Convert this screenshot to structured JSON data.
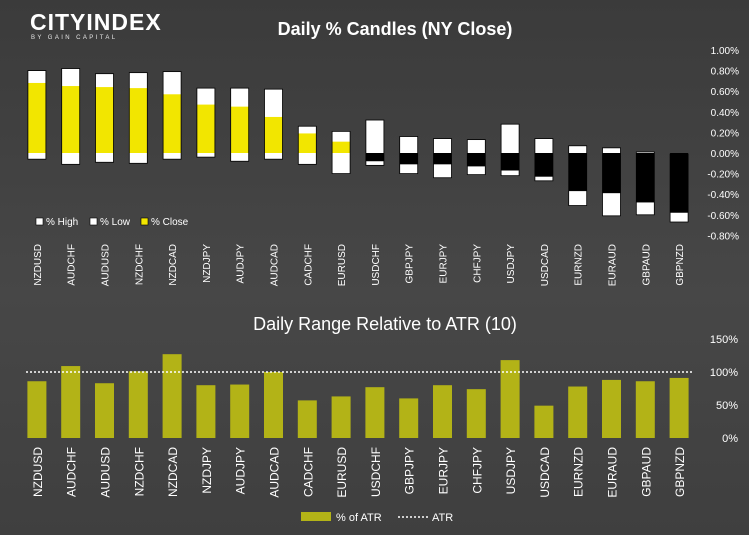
{
  "brand": {
    "name_a": "CITY",
    "name_b": "INDEX",
    "tagline": "BY GAIN CAPITAL"
  },
  "colors": {
    "yellow": "#f2e600",
    "olive": "#b3b317",
    "white": "#ffffff",
    "black": "#000000"
  },
  "chart_data": [
    {
      "type": "bar",
      "title": "Daily % Candles (NY Close)",
      "categories": [
        "NZDUSD",
        "AUDCHF",
        "AUDUSD",
        "NZDCHF",
        "NZDCAD",
        "NZDJPY",
        "AUDJPY",
        "AUDCAD",
        "CADCHF",
        "EURUSD",
        "USDCHF",
        "GBPJPY",
        "EURJPY",
        "CHFJPY",
        "USDJPY",
        "USDCAD",
        "EURNZD",
        "EURAUD",
        "GBPAUD",
        "GBPNZD"
      ],
      "series": [
        {
          "name": "% High",
          "values": [
            0.8,
            0.82,
            0.77,
            0.78,
            0.79,
            0.63,
            0.63,
            0.62,
            0.26,
            0.21,
            0.32,
            0.16,
            0.14,
            0.13,
            0.28,
            0.14,
            0.07,
            0.05,
            0.01,
            -0.01
          ]
        },
        {
          "name": "% Low",
          "values": [
            -0.06,
            -0.11,
            -0.09,
            -0.1,
            -0.06,
            -0.04,
            -0.08,
            -0.06,
            -0.11,
            -0.2,
            -0.12,
            -0.2,
            -0.24,
            -0.21,
            -0.22,
            -0.27,
            -0.51,
            -0.61,
            -0.6,
            -0.67
          ]
        },
        {
          "name": "% Close",
          "values": [
            0.68,
            0.65,
            0.64,
            0.63,
            0.57,
            0.47,
            0.45,
            0.35,
            0.19,
            0.11,
            -0.08,
            -0.11,
            -0.11,
            -0.13,
            -0.17,
            -0.23,
            -0.37,
            -0.39,
            -0.48,
            -0.58
          ]
        }
      ],
      "yticks": [
        "1.00%",
        "0.80%",
        "0.60%",
        "0.40%",
        "0.20%",
        "0.00%",
        "-0.20%",
        "-0.40%",
        "-0.60%",
        "-0.80%"
      ],
      "ylim": [
        -0.8,
        1.0
      ],
      "legend_position": "bottom-left"
    },
    {
      "type": "bar",
      "title": "Daily Range Relative to ATR (10)",
      "categories": [
        "NZDUSD",
        "AUDCHF",
        "AUDUSD",
        "NZDCHF",
        "NZDCAD",
        "NZDJPY",
        "AUDJPY",
        "AUDCAD",
        "CADCHF",
        "EURUSD",
        "USDCHF",
        "GBPJPY",
        "EURJPY",
        "CHFJPY",
        "USDJPY",
        "USDCAD",
        "EURNZD",
        "EURAUD",
        "GBPAUD",
        "GBPNZD"
      ],
      "series": [
        {
          "name": "% of ATR",
          "values": [
            86,
            109,
            83,
            101,
            127,
            80,
            81,
            100,
            57,
            63,
            77,
            60,
            80,
            74,
            118,
            49,
            78,
            88,
            86,
            91
          ]
        },
        {
          "name": "ATR",
          "values": [
            100,
            100,
            100,
            100,
            100,
            100,
            100,
            100,
            100,
            100,
            100,
            100,
            100,
            100,
            100,
            100,
            100,
            100,
            100,
            100
          ]
        }
      ],
      "yticks": [
        "150%",
        "100%",
        "50%",
        "0%"
      ],
      "ylim": [
        0,
        150
      ],
      "legend_position": "bottom-center"
    }
  ]
}
